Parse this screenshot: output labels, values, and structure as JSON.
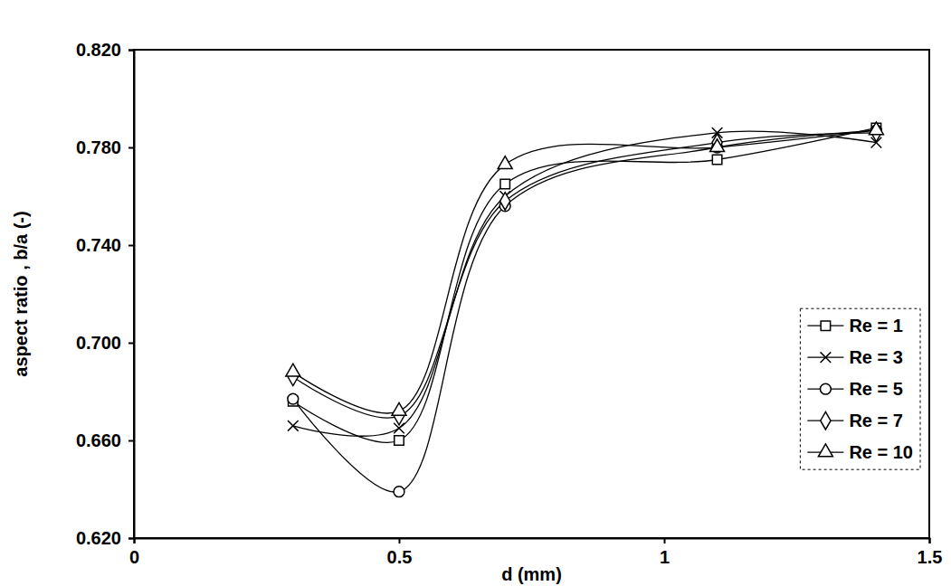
{
  "chart_data": {
    "type": "line",
    "x_label": "d (mm)",
    "y_label": "aspect ratio , b/a (-)",
    "x": [
      0.3,
      0.5,
      0.7,
      1.1,
      1.4
    ],
    "series": [
      {
        "name": "Re = 1",
        "color": "#000000",
        "marker": "square",
        "values": [
          0.676,
          0.66,
          0.765,
          0.775,
          0.788
        ]
      },
      {
        "name": "Re = 3",
        "color": "#000000",
        "marker": "x",
        "values": [
          0.666,
          0.665,
          0.76,
          0.786,
          0.782
        ]
      },
      {
        "name": "Re = 5",
        "color": "#000000",
        "marker": "circle",
        "values": [
          0.677,
          0.639,
          0.756,
          0.78,
          0.787
        ]
      },
      {
        "name": "Re = 7",
        "color": "#000000",
        "marker": "diamond",
        "values": [
          0.686,
          0.67,
          0.758,
          0.782,
          0.786
        ]
      },
      {
        "name": "Re = 10",
        "color": "#000000",
        "marker": "triangle",
        "values": [
          0.688,
          0.672,
          0.773,
          0.78,
          0.787
        ]
      }
    ],
    "xlim": [
      0,
      1.5
    ],
    "xticks": [
      0,
      0.5,
      1,
      1.5
    ],
    "ylim": [
      0.62,
      0.82
    ],
    "yticks": [
      {
        "value": 0.62,
        "label": "0.620"
      },
      {
        "value": 0.66,
        "label": "0.660"
      },
      {
        "value": 0.7,
        "label": "0.700"
      },
      {
        "value": 0.74,
        "label": "0.740"
      },
      {
        "value": 0.78,
        "label": "0.780"
      },
      {
        "value": 0.82,
        "label": "0.820"
      }
    ],
    "grid": false,
    "legend": "right"
  }
}
